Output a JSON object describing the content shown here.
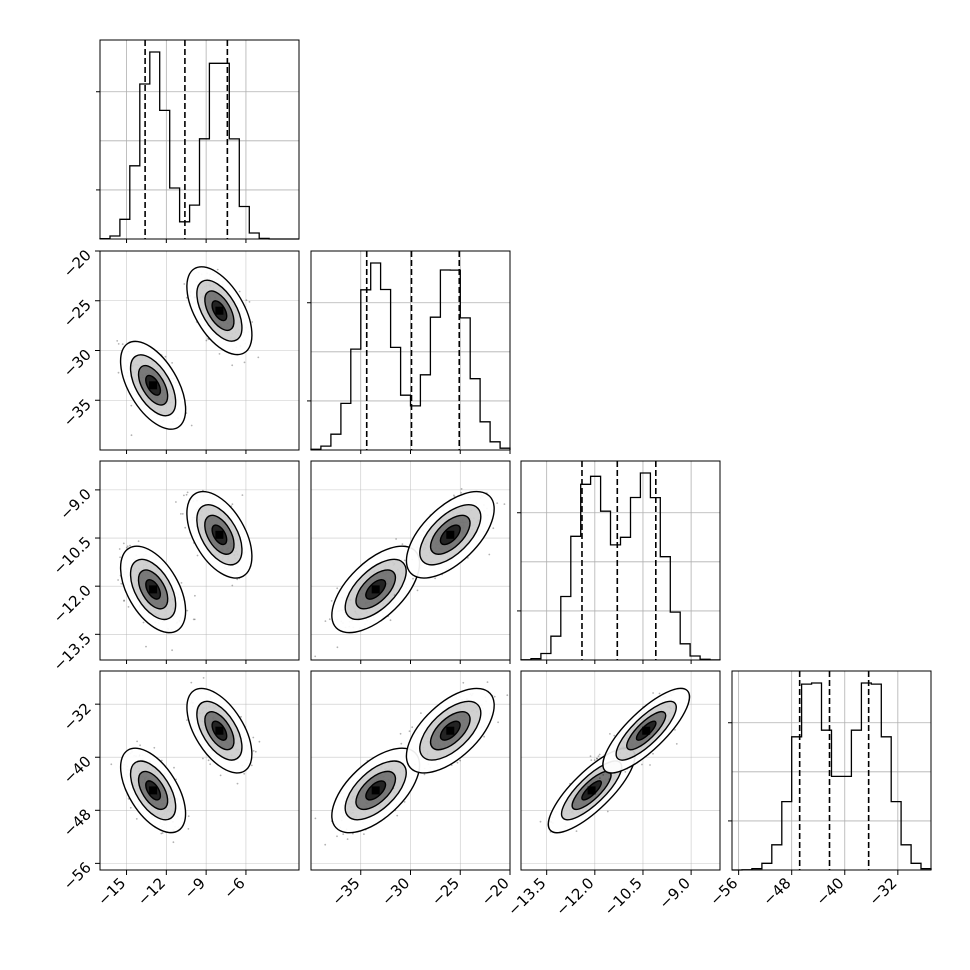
{
  "chart_data": {
    "type": "corner",
    "title": "",
    "parameters": [
      {
        "name": "",
        "range": [
          -17.0,
          -2.0
        ],
        "ticks": [
          "−15",
          "−12",
          "−9",
          "−6"
        ],
        "tick_values": [
          -15,
          -12,
          -9,
          -6
        ],
        "quantiles": [
          -13.6,
          -10.6,
          -7.4
        ],
        "modes": [
          {
            "mean": -13.0,
            "sd": 1.0,
            "w": 0.5
          },
          {
            "mean": -8.0,
            "sd": 1.0,
            "w": 0.5
          }
        ]
      },
      {
        "name": "",
        "range": [
          -40.0,
          -20.0
        ],
        "ticks": [
          "−35",
          "−30",
          "−25",
          "−20"
        ],
        "tick_values": [
          -35,
          -30,
          -25,
          -20
        ],
        "quantiles": [
          -34.4,
          -29.9,
          -25.1
        ],
        "modes": [
          {
            "mean": -33.5,
            "sd": 1.8,
            "w": 0.5
          },
          {
            "mean": -26.0,
            "sd": 1.8,
            "w": 0.5
          }
        ]
      },
      {
        "name": "",
        "range": [
          -14.3,
          -8.1
        ],
        "ticks": [
          "−9.0",
          "−10.5",
          "−12.0",
          "−13.5"
        ],
        "tick_values": [
          -9.0,
          -10.5,
          -12.0,
          -13.5
        ],
        "quantiles": [
          -12.4,
          -11.3,
          -10.1
        ],
        "modes": [
          {
            "mean": -12.1,
            "sd": 0.55,
            "w": 0.5
          },
          {
            "mean": -10.4,
            "sd": 0.55,
            "w": 0.5
          }
        ]
      },
      {
        "name": "",
        "range": [
          -57.0,
          -27.0
        ],
        "ticks": [
          "−32",
          "−40",
          "−48",
          "−56"
        ],
        "tick_values": [
          -32,
          -40,
          -48,
          -56
        ],
        "quantiles": [
          -46.8,
          -42.3,
          -36.4
        ],
        "modes": [
          {
            "mean": -45.0,
            "sd": 2.6,
            "w": 0.5
          },
          {
            "mean": -36.0,
            "sd": 2.6,
            "w": 0.5
          }
        ]
      }
    ],
    "pair_correlations": {
      "1-0": -0.55,
      "2-0": -0.5,
      "2-1": 0.6,
      "3-0": -0.55,
      "3-1": 0.6,
      "3-2": 0.8
    },
    "xtick_rotation_deg": -45,
    "ytick_rotation_deg": -45,
    "grid": true,
    "colors": {
      "hist": "#000000",
      "grid": "#b0b0b0",
      "scatter": "#000000",
      "contour": "#000000",
      "density": "#000000"
    }
  }
}
